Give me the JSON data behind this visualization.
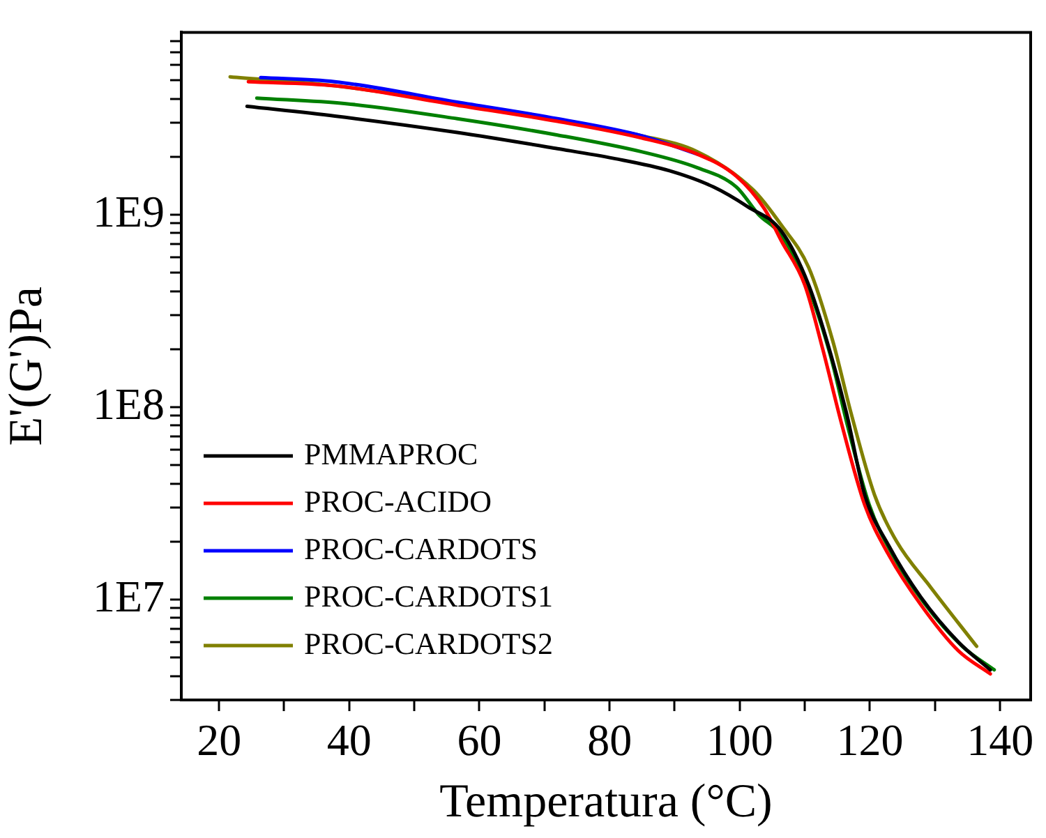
{
  "chart_data": {
    "type": "line",
    "xlabel": "Temperatura (°C)",
    "ylabel": "E'(G')Pa",
    "log": "y",
    "grid": false,
    "legend": "bottom left",
    "marker": "none",
    "line_style": "solid",
    "xlim": [
      14.2,
      144.7
    ],
    "xticks": [
      20,
      {
        "value": 30,
        "label": null
      },
      40,
      {
        "value": 50,
        "label": null
      },
      60,
      {
        "value": 70,
        "label": null
      },
      80,
      {
        "value": 90,
        "label": null
      },
      100,
      {
        "value": 110,
        "label": null
      },
      120,
      {
        "value": 130,
        "label": null
      },
      140
    ],
    "ylim": [
      3000000,
      8850000000
    ],
    "yticks": [
      {
        "value": 3000000,
        "label": null
      },
      {
        "value": 4000000,
        "label": null
      },
      {
        "value": 5000000,
        "label": null
      },
      {
        "value": 6000000,
        "label": null
      },
      {
        "value": 7000000,
        "label": null
      },
      {
        "value": 8000000,
        "label": null
      },
      {
        "value": 9000000,
        "label": null
      },
      {
        "value": 10000000,
        "label": "1E7"
      },
      {
        "value": 20000000,
        "label": null
      },
      {
        "value": 30000000,
        "label": null
      },
      {
        "value": 40000000,
        "label": null
      },
      {
        "value": 50000000,
        "label": null
      },
      {
        "value": 60000000,
        "label": null
      },
      {
        "value": 70000000,
        "label": null
      },
      {
        "value": 80000000,
        "label": null
      },
      {
        "value": 90000000,
        "label": null
      },
      {
        "value": 100000000,
        "label": "1E8"
      },
      {
        "value": 200000000,
        "label": null
      },
      {
        "value": 300000000,
        "label": null
      },
      {
        "value": 400000000,
        "label": null
      },
      {
        "value": 500000000,
        "label": null
      },
      {
        "value": 600000000,
        "label": null
      },
      {
        "value": 700000000,
        "label": null
      },
      {
        "value": 800000000,
        "label": null
      },
      {
        "value": 900000000,
        "label": null
      },
      {
        "value": 1000000000,
        "label": "1E9"
      },
      {
        "value": 2000000000,
        "label": null
      },
      {
        "value": 3000000000,
        "label": null
      },
      {
        "value": 4000000000,
        "label": null
      },
      {
        "value": 5000000000,
        "label": null
      },
      {
        "value": 6000000000,
        "label": null
      },
      {
        "value": 7000000000,
        "label": null
      },
      {
        "value": 8000000000,
        "label": null
      }
    ],
    "series": [
      {
        "name": "PMMAPROC",
        "color": "#000000",
        "x": [
          24.3,
          37.8,
          56.6,
          72,
          80.6,
          89.2,
          96,
          101.2,
          106.4,
          110.6,
          113.4,
          116.4,
          119.2,
          122.9,
          127.8,
          133.6,
          138.5
        ],
        "values": [
          3650000000,
          3250000000,
          2670000000,
          2200000000,
          1960000000,
          1690000000,
          1390000000,
          1100000000,
          820000000,
          430000000,
          220000000,
          93000000,
          35000000,
          19000000,
          10300000,
          6000000,
          4300000
        ]
      },
      {
        "name": "PROC-ACIDO",
        "color": "#ff0000",
        "x": [
          24.5,
          37.8,
          56.6,
          72,
          84.9,
          93.5,
          99.5,
          103.8,
          106.4,
          110,
          112.8,
          115.6,
          119.2,
          122.9,
          127.8,
          133.6,
          138.5
        ],
        "values": [
          4900000000,
          4670000000,
          3700000000,
          3050000000,
          2500000000,
          2060000000,
          1580000000,
          1070000000,
          730000000,
          430000000,
          197000000,
          83000000,
          31000000,
          17000000,
          9400000,
          5400000,
          4100000
        ]
      },
      {
        "name": "PROC-CARDOTS",
        "color": "#0000ff",
        "x": [
          26.4,
          37.8,
          56.6,
          72,
          84.9,
          93.5
        ],
        "values": [
          5150000000,
          4900000000,
          3840000000,
          3150000000,
          2570000000,
          2060000000
        ]
      },
      {
        "name": "PROC-CARDOTS1",
        "color": "#008000",
        "x": [
          25.8,
          39.5,
          56.6,
          72,
          84.9,
          93.5,
          99.5,
          102.9,
          106.4,
          110.6,
          113.9,
          116.6,
          119.9,
          123.5,
          128.4,
          134.2,
          139.1
        ],
        "values": [
          4030000000,
          3770000000,
          3150000000,
          2590000000,
          2120000000,
          1750000000,
          1390000000,
          1000000000,
          780000000,
          410000000,
          187000000,
          79000000,
          31000000,
          17000000,
          9500000,
          5700000,
          4300000
        ]
      },
      {
        "name": "PROC-CARDOTS2",
        "color": "#808000",
        "x": [
          21.7,
          37.8,
          56.6,
          72,
          84.9,
          93.5,
          102.1,
          106.4,
          110.6,
          114.3,
          117.1,
          120.7,
          124.1,
          129.3,
          136.4
        ],
        "values": [
          5200000000,
          4670000000,
          3770000000,
          3100000000,
          2570000000,
          2120000000,
          1340000000,
          880000000,
          530000000,
          220000000,
          93000000,
          35000000,
          20000000,
          11600000,
          5700000
        ]
      }
    ]
  }
}
